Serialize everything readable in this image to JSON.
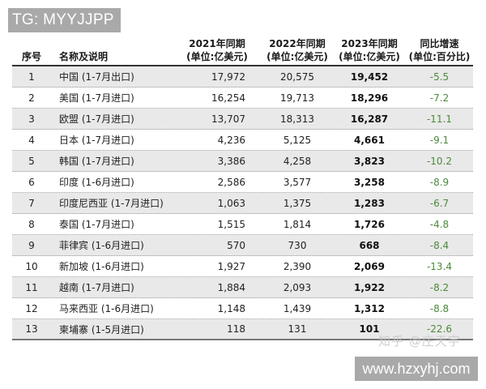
{
  "watermarks": {
    "tg_badge": "TG: MYYJJPP",
    "zhihu": "知乎 @庄天宇",
    "site": "www.hzxyhj.com"
  },
  "table": {
    "headers": {
      "idx": "序号",
      "name": "名称及说明",
      "y2021_line1": "2021年同期",
      "y2021_line2": "(单位:亿美元)",
      "y2022_line1": "2022年同期",
      "y2022_line2": "(单位:亿美元)",
      "y2023_line1": "2023年同期",
      "y2023_line2": "(单位:亿美元)",
      "yoy_line1": "同比增速",
      "yoy_line2": "(单位:百分比)"
    },
    "rows": [
      {
        "idx": "1",
        "name": "中国 (1-7月出口)",
        "y2021": "17,972",
        "y2022": "20,575",
        "y2023": "19,452",
        "yoy": "-5.5"
      },
      {
        "idx": "2",
        "name": "美国 (1-7月进口)",
        "y2021": "16,254",
        "y2022": "19,713",
        "y2023": "18,296",
        "yoy": "-7.2"
      },
      {
        "idx": "3",
        "name": "欧盟 (1-7月进口)",
        "y2021": "13,707",
        "y2022": "18,313",
        "y2023": "16,287",
        "yoy": "-11.1"
      },
      {
        "idx": "4",
        "name": "日本 (1-7月进口)",
        "y2021": "4,236",
        "y2022": "5,125",
        "y2023": "4,661",
        "yoy": "-9.1"
      },
      {
        "idx": "5",
        "name": "韩国 (1-7月进口)",
        "y2021": "3,386",
        "y2022": "4,258",
        "y2023": "3,823",
        "yoy": "-10.2"
      },
      {
        "idx": "6",
        "name": "印度 (1-6月进口)",
        "y2021": "2,586",
        "y2022": "3,577",
        "y2023": "3,258",
        "yoy": "-8.9"
      },
      {
        "idx": "7",
        "name": "印度尼西亚 (1-7月进口)",
        "y2021": "1,063",
        "y2022": "1,375",
        "y2023": "1,283",
        "yoy": "-6.7"
      },
      {
        "idx": "8",
        "name": "泰国 (1-7月进口)",
        "y2021": "1,515",
        "y2022": "1,814",
        "y2023": "1,726",
        "yoy": "-4.8"
      },
      {
        "idx": "9",
        "name": "菲律宾 (1-6月进口)",
        "y2021": "570",
        "y2022": "730",
        "y2023": "668",
        "yoy": "-8.4"
      },
      {
        "idx": "10",
        "name": "新加坡 (1-6月进口)",
        "y2021": "1,927",
        "y2022": "2,390",
        "y2023": "2,069",
        "yoy": "-13.4"
      },
      {
        "idx": "11",
        "name": "越南 (1-7月进口)",
        "y2021": "1,884",
        "y2022": "2,093",
        "y2023": "1,922",
        "yoy": "-8.2"
      },
      {
        "idx": "12",
        "name": "马来西亚 (1-6月进口)",
        "y2021": "1,148",
        "y2022": "1,439",
        "y2023": "1,312",
        "yoy": "-8.8"
      },
      {
        "idx": "13",
        "name": "柬埔寨 (1-5月进口)",
        "y2021": "118",
        "y2022": "131",
        "y2023": "101",
        "yoy": "-22.6"
      }
    ]
  },
  "colors": {
    "shaded_row": "#e9e9e9",
    "yoy_text": "#4c8a3c",
    "badge_bg": "#a9a9a9"
  }
}
